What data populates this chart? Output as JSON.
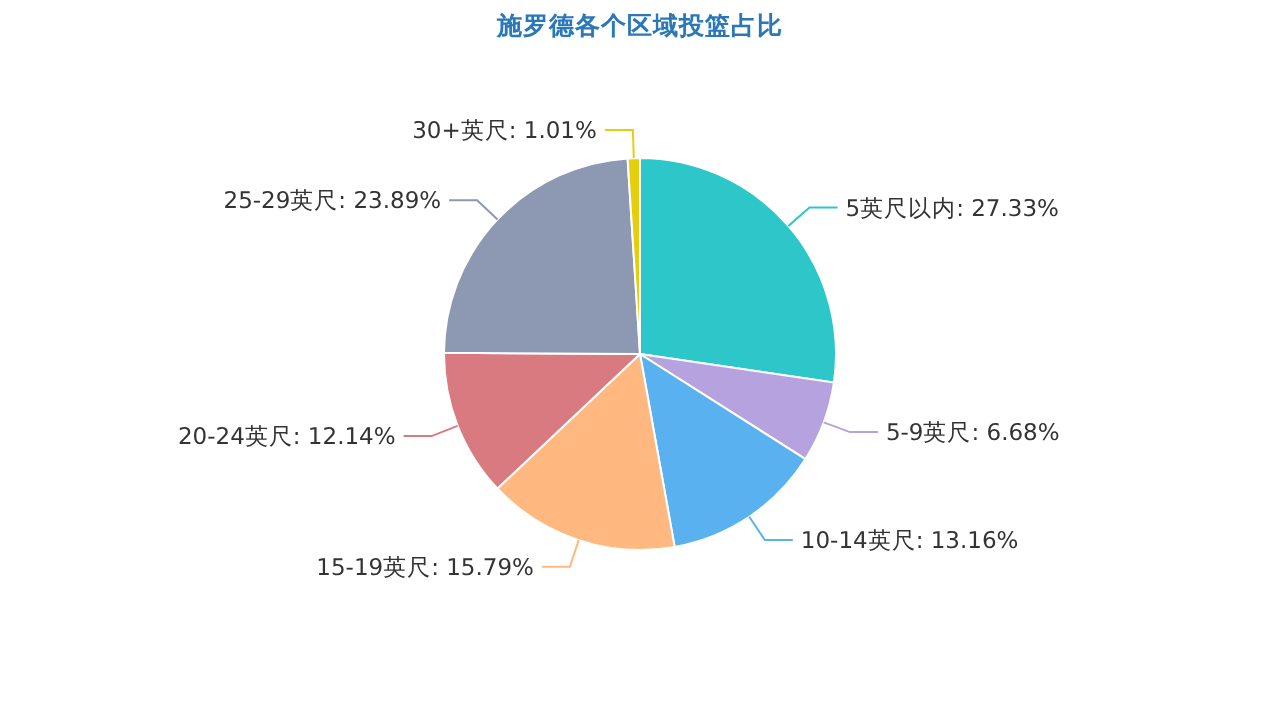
{
  "chart_data": {
    "type": "pie",
    "title": "施罗德各个区域投篮占比",
    "categories": [
      "5英尺以内",
      "5-9英尺",
      "10-14英尺",
      "15-19英尺",
      "20-24英尺",
      "25-29英尺",
      "30+英尺"
    ],
    "values": [
      27.33,
      6.68,
      13.16,
      15.79,
      12.14,
      23.89,
      1.01
    ],
    "value_labels": [
      "27.33%",
      "6.68%",
      "13.16%",
      "15.79%",
      "12.14%",
      "23.89%",
      "1.01%"
    ],
    "colors": [
      "#2ec7c9",
      "#b6a2de",
      "#5ab1ef",
      "#ffb980",
      "#d87a80",
      "#8d98b3",
      "#e5cf0d"
    ]
  }
}
